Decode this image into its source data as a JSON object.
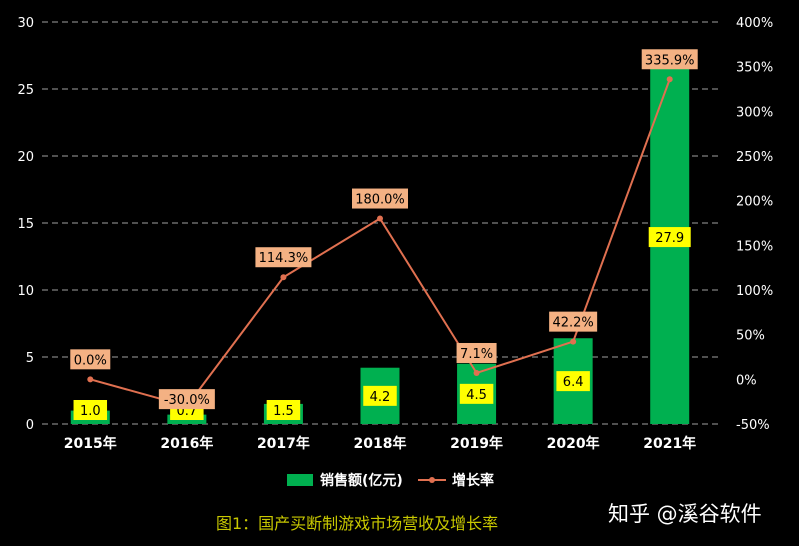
{
  "chart_data": {
    "type": "bar",
    "categories": [
      "2015年",
      "2016年",
      "2017年",
      "2018年",
      "2019年",
      "2020年",
      "2021年"
    ],
    "series": [
      {
        "name": "销售额(亿元)",
        "type": "bar",
        "axis": "left",
        "values": [
          1.0,
          0.7,
          1.5,
          4.2,
          4.5,
          6.4,
          27.9
        ],
        "labels": [
          "1.0",
          "0.7",
          "1.5",
          "4.2",
          "4.5",
          "6.4",
          "27.9"
        ]
      },
      {
        "name": "增长率",
        "type": "line",
        "axis": "right",
        "values": [
          0.0,
          -30.0,
          114.3,
          180.0,
          7.1,
          42.2,
          335.9
        ],
        "labels": [
          "0.0%",
          "-30.0%",
          "114.3%",
          "180.0%",
          "7.1%",
          "42.2%",
          "335.9%"
        ]
      }
    ],
    "y_left": {
      "min": 0,
      "max": 30,
      "ticks": [
        0,
        5,
        10,
        15,
        20,
        25,
        30
      ],
      "tick_labels": [
        "0",
        "5",
        "10",
        "15",
        "20",
        "25",
        "30"
      ]
    },
    "y_right": {
      "min": -50,
      "max": 400,
      "ticks": [
        -50,
        0,
        50,
        100,
        150,
        200,
        250,
        300,
        350,
        400
      ],
      "tick_labels": [
        "-50%",
        "0%",
        "50%",
        "100%",
        "150%",
        "200%",
        "250%",
        "300%",
        "350%",
        "400%"
      ]
    },
    "grid": "dashed horizontal",
    "legend_position": "bottom-center",
    "colors": {
      "bar": "#00b050",
      "line": "#e07050",
      "bar_label_bg": "#ffff00",
      "line_label_bg": "#f4b183",
      "caption": "#c8c800"
    }
  },
  "caption": "图1：国产买断制游戏市场营收及增长率",
  "watermark": "知乎 @溪谷软件"
}
